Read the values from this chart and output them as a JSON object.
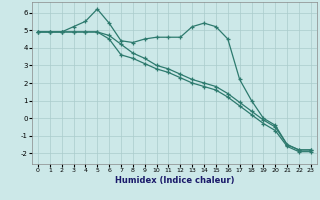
{
  "xlabel": "Humidex (Indice chaleur)",
  "background_color": "#cce8e8",
  "grid_color": "#aacccc",
  "line_color": "#2d7a6e",
  "xlim": [
    -0.5,
    23.5
  ],
  "ylim": [
    -2.6,
    6.6
  ],
  "yticks": [
    -2,
    -1,
    0,
    1,
    2,
    3,
    4,
    5,
    6
  ],
  "xticks": [
    0,
    1,
    2,
    3,
    4,
    5,
    6,
    7,
    8,
    9,
    10,
    11,
    12,
    13,
    14,
    15,
    16,
    17,
    18,
    19,
    20,
    21,
    22,
    23
  ],
  "line1_x": [
    0,
    1,
    2,
    3,
    4,
    5,
    6,
    7,
    8,
    9,
    10,
    11,
    12,
    13,
    14,
    15,
    16,
    17,
    18,
    19,
    20,
    21,
    22,
    23
  ],
  "line1_y": [
    4.9,
    4.9,
    4.9,
    5.2,
    5.5,
    6.2,
    5.4,
    4.4,
    4.3,
    4.5,
    4.6,
    4.6,
    4.6,
    5.2,
    5.4,
    5.2,
    4.5,
    2.2,
    1.0,
    0.0,
    -0.4,
    -1.5,
    -1.8,
    -1.8
  ],
  "line2_x": [
    0,
    1,
    2,
    3,
    4,
    5,
    6,
    7,
    8,
    9,
    10,
    11,
    12,
    13,
    14,
    15,
    16,
    17,
    18,
    19,
    20,
    21,
    22,
    23
  ],
  "line2_y": [
    4.9,
    4.9,
    4.9,
    4.9,
    4.9,
    4.9,
    4.7,
    4.2,
    3.7,
    3.4,
    3.0,
    2.8,
    2.5,
    2.2,
    2.0,
    1.8,
    1.4,
    0.9,
    0.4,
    -0.1,
    -0.5,
    -1.5,
    -1.8,
    -1.8
  ],
  "line3_x": [
    0,
    1,
    2,
    3,
    4,
    5,
    6,
    7,
    8,
    9,
    10,
    11,
    12,
    13,
    14,
    15,
    16,
    17,
    18,
    19,
    20,
    21,
    22,
    23
  ],
  "line3_y": [
    4.9,
    4.9,
    4.9,
    4.9,
    4.9,
    4.9,
    4.5,
    3.6,
    3.4,
    3.1,
    2.8,
    2.6,
    2.3,
    2.0,
    1.8,
    1.6,
    1.2,
    0.7,
    0.2,
    -0.3,
    -0.7,
    -1.6,
    -1.9,
    -1.9
  ]
}
